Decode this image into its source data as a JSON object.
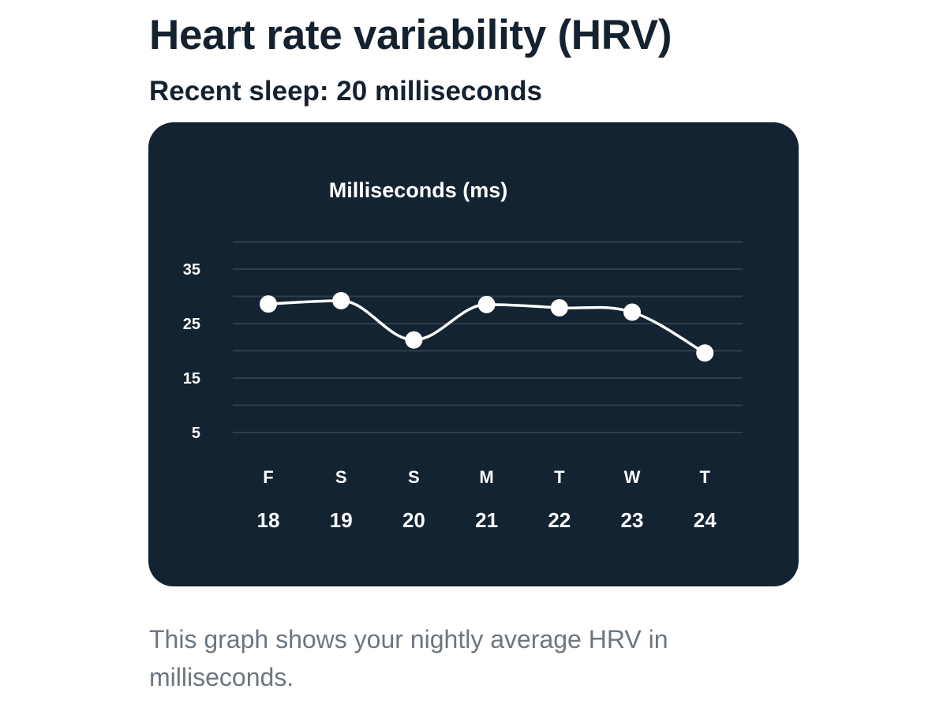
{
  "header": {
    "title": "Heart rate variability (HRV)",
    "subtitle": "Recent sleep: 20 milliseconds"
  },
  "description": "This graph shows your nightly average HRV in milliseconds.",
  "colors": {
    "card_background": "#132331",
    "line": "#ffffff",
    "gridline": "#2f3e4b",
    "heading_text": "#142230",
    "description_text": "#6c7680"
  },
  "chart_data": {
    "type": "line",
    "title": "Milliseconds (ms)",
    "xlabel": "",
    "ylabel": "",
    "categories": [
      "F",
      "S",
      "S",
      "M",
      "T",
      "W",
      "T"
    ],
    "dates": [
      "18",
      "19",
      "20",
      "21",
      "22",
      "23",
      "24"
    ],
    "values": [
      28.6,
      29.2,
      22.0,
      28.5,
      27.9,
      27.1,
      19.6
    ],
    "yticks": [
      5,
      15,
      25,
      35
    ],
    "ylim": [
      0,
      40
    ],
    "grid": true,
    "curve": "smooth",
    "markers": true
  }
}
